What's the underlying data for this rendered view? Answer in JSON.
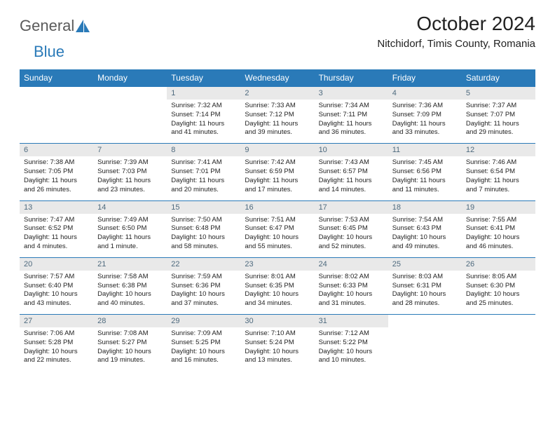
{
  "brand": {
    "part1": "General",
    "part2": "Blue"
  },
  "title": "October 2024",
  "location": "Nitchidorf, Timis County, Romania",
  "colors": {
    "header_bg": "#2a7ab8",
    "header_text": "#ffffff",
    "daynum_bg": "#e9e9e9",
    "daynum_text": "#4e6a7e",
    "body_text": "#222222",
    "page_bg": "#ffffff",
    "row_border": "#2a7ab8"
  },
  "weekdays": [
    "Sunday",
    "Monday",
    "Tuesday",
    "Wednesday",
    "Thursday",
    "Friday",
    "Saturday"
  ],
  "weeks": [
    [
      null,
      null,
      {
        "n": "1",
        "sr": "Sunrise: 7:32 AM",
        "ss": "Sunset: 7:14 PM",
        "dl": "Daylight: 11 hours and 41 minutes."
      },
      {
        "n": "2",
        "sr": "Sunrise: 7:33 AM",
        "ss": "Sunset: 7:12 PM",
        "dl": "Daylight: 11 hours and 39 minutes."
      },
      {
        "n": "3",
        "sr": "Sunrise: 7:34 AM",
        "ss": "Sunset: 7:11 PM",
        "dl": "Daylight: 11 hours and 36 minutes."
      },
      {
        "n": "4",
        "sr": "Sunrise: 7:36 AM",
        "ss": "Sunset: 7:09 PM",
        "dl": "Daylight: 11 hours and 33 minutes."
      },
      {
        "n": "5",
        "sr": "Sunrise: 7:37 AM",
        "ss": "Sunset: 7:07 PM",
        "dl": "Daylight: 11 hours and 29 minutes."
      }
    ],
    [
      {
        "n": "6",
        "sr": "Sunrise: 7:38 AM",
        "ss": "Sunset: 7:05 PM",
        "dl": "Daylight: 11 hours and 26 minutes."
      },
      {
        "n": "7",
        "sr": "Sunrise: 7:39 AM",
        "ss": "Sunset: 7:03 PM",
        "dl": "Daylight: 11 hours and 23 minutes."
      },
      {
        "n": "8",
        "sr": "Sunrise: 7:41 AM",
        "ss": "Sunset: 7:01 PM",
        "dl": "Daylight: 11 hours and 20 minutes."
      },
      {
        "n": "9",
        "sr": "Sunrise: 7:42 AM",
        "ss": "Sunset: 6:59 PM",
        "dl": "Daylight: 11 hours and 17 minutes."
      },
      {
        "n": "10",
        "sr": "Sunrise: 7:43 AM",
        "ss": "Sunset: 6:57 PM",
        "dl": "Daylight: 11 hours and 14 minutes."
      },
      {
        "n": "11",
        "sr": "Sunrise: 7:45 AM",
        "ss": "Sunset: 6:56 PM",
        "dl": "Daylight: 11 hours and 11 minutes."
      },
      {
        "n": "12",
        "sr": "Sunrise: 7:46 AM",
        "ss": "Sunset: 6:54 PM",
        "dl": "Daylight: 11 hours and 7 minutes."
      }
    ],
    [
      {
        "n": "13",
        "sr": "Sunrise: 7:47 AM",
        "ss": "Sunset: 6:52 PM",
        "dl": "Daylight: 11 hours and 4 minutes."
      },
      {
        "n": "14",
        "sr": "Sunrise: 7:49 AM",
        "ss": "Sunset: 6:50 PM",
        "dl": "Daylight: 11 hours and 1 minute."
      },
      {
        "n": "15",
        "sr": "Sunrise: 7:50 AM",
        "ss": "Sunset: 6:48 PM",
        "dl": "Daylight: 10 hours and 58 minutes."
      },
      {
        "n": "16",
        "sr": "Sunrise: 7:51 AM",
        "ss": "Sunset: 6:47 PM",
        "dl": "Daylight: 10 hours and 55 minutes."
      },
      {
        "n": "17",
        "sr": "Sunrise: 7:53 AM",
        "ss": "Sunset: 6:45 PM",
        "dl": "Daylight: 10 hours and 52 minutes."
      },
      {
        "n": "18",
        "sr": "Sunrise: 7:54 AM",
        "ss": "Sunset: 6:43 PM",
        "dl": "Daylight: 10 hours and 49 minutes."
      },
      {
        "n": "19",
        "sr": "Sunrise: 7:55 AM",
        "ss": "Sunset: 6:41 PM",
        "dl": "Daylight: 10 hours and 46 minutes."
      }
    ],
    [
      {
        "n": "20",
        "sr": "Sunrise: 7:57 AM",
        "ss": "Sunset: 6:40 PM",
        "dl": "Daylight: 10 hours and 43 minutes."
      },
      {
        "n": "21",
        "sr": "Sunrise: 7:58 AM",
        "ss": "Sunset: 6:38 PM",
        "dl": "Daylight: 10 hours and 40 minutes."
      },
      {
        "n": "22",
        "sr": "Sunrise: 7:59 AM",
        "ss": "Sunset: 6:36 PM",
        "dl": "Daylight: 10 hours and 37 minutes."
      },
      {
        "n": "23",
        "sr": "Sunrise: 8:01 AM",
        "ss": "Sunset: 6:35 PM",
        "dl": "Daylight: 10 hours and 34 minutes."
      },
      {
        "n": "24",
        "sr": "Sunrise: 8:02 AM",
        "ss": "Sunset: 6:33 PM",
        "dl": "Daylight: 10 hours and 31 minutes."
      },
      {
        "n": "25",
        "sr": "Sunrise: 8:03 AM",
        "ss": "Sunset: 6:31 PM",
        "dl": "Daylight: 10 hours and 28 minutes."
      },
      {
        "n": "26",
        "sr": "Sunrise: 8:05 AM",
        "ss": "Sunset: 6:30 PM",
        "dl": "Daylight: 10 hours and 25 minutes."
      }
    ],
    [
      {
        "n": "27",
        "sr": "Sunrise: 7:06 AM",
        "ss": "Sunset: 5:28 PM",
        "dl": "Daylight: 10 hours and 22 minutes."
      },
      {
        "n": "28",
        "sr": "Sunrise: 7:08 AM",
        "ss": "Sunset: 5:27 PM",
        "dl": "Daylight: 10 hours and 19 minutes."
      },
      {
        "n": "29",
        "sr": "Sunrise: 7:09 AM",
        "ss": "Sunset: 5:25 PM",
        "dl": "Daylight: 10 hours and 16 minutes."
      },
      {
        "n": "30",
        "sr": "Sunrise: 7:10 AM",
        "ss": "Sunset: 5:24 PM",
        "dl": "Daylight: 10 hours and 13 minutes."
      },
      {
        "n": "31",
        "sr": "Sunrise: 7:12 AM",
        "ss": "Sunset: 5:22 PM",
        "dl": "Daylight: 10 hours and 10 minutes."
      },
      null,
      null
    ]
  ]
}
